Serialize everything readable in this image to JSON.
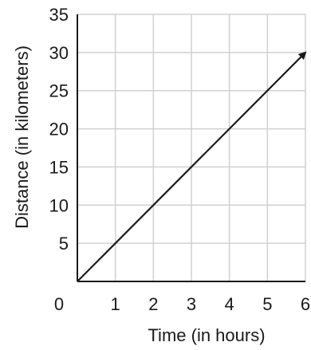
{
  "chart_data": {
    "type": "line",
    "title": "",
    "xlabel": "Time (in hours)",
    "ylabel": "Distance (in kilometers)",
    "xlim": [
      0,
      6
    ],
    "ylim": [
      0,
      35
    ],
    "x_ticks": [
      1,
      2,
      3,
      4,
      5,
      6
    ],
    "y_ticks": [
      5,
      10,
      15,
      20,
      25,
      30,
      35
    ],
    "origin_label": "0",
    "grid": true,
    "arrow_end": true,
    "series": [
      {
        "x": [
          0,
          6
        ],
        "y": [
          0,
          30
        ]
      }
    ],
    "colors": {
      "line": "#1a1a1a",
      "grid": "#d0d0d0"
    }
  }
}
